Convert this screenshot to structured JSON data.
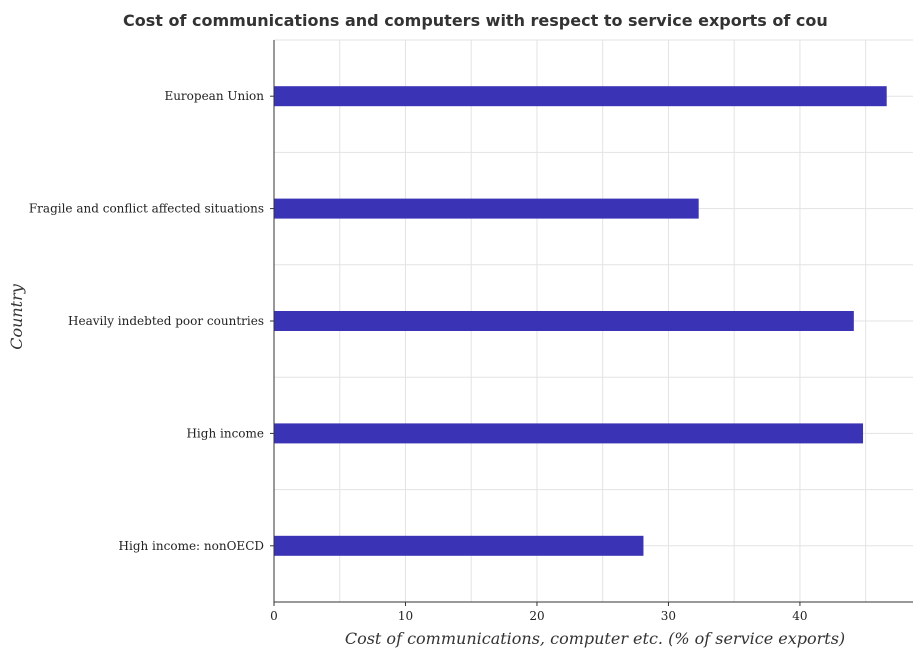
{
  "chart_data": {
    "type": "bar",
    "orientation": "horizontal",
    "title": "Cost of communications and computers with respect to service exports of cou",
    "xlabel": "Cost of communications, computer etc. (% of service exports)",
    "ylabel": "Country",
    "categories": [
      "European Union",
      "Fragile and conflict affected situations",
      "Heavily indebted poor countries",
      "High income",
      "High income: nonOECD"
    ],
    "values": [
      46.6,
      32.3,
      44.1,
      44.8,
      28.1
    ],
    "xlim": [
      0,
      48.6
    ],
    "xticks": [
      0,
      10,
      20,
      30,
      40
    ],
    "bar_color": "#3b33b5",
    "grid": true,
    "legend": "none"
  }
}
